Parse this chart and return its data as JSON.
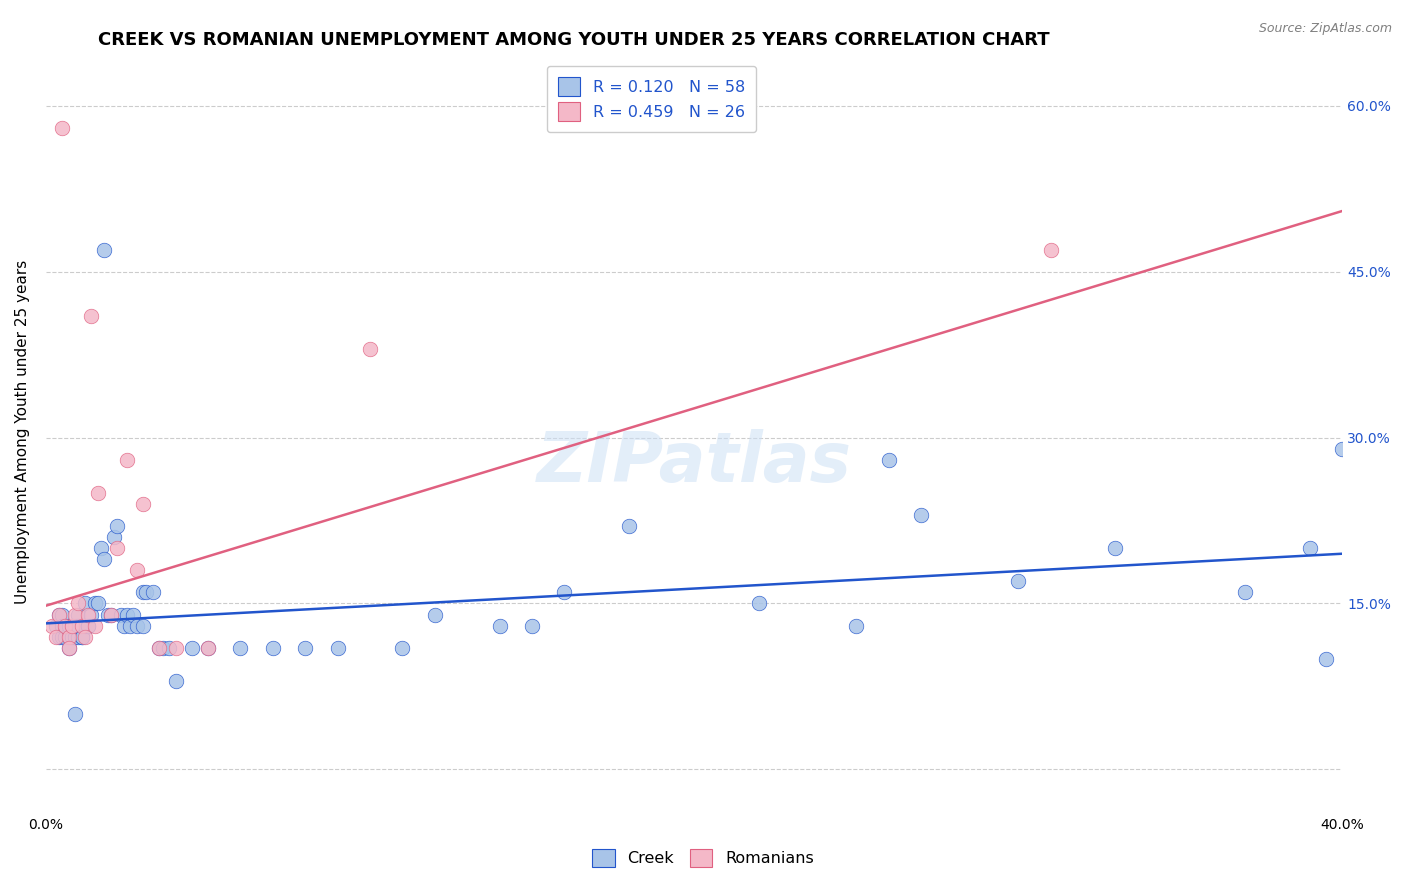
{
  "title": "CREEK VS ROMANIAN UNEMPLOYMENT AMONG YOUTH UNDER 25 YEARS CORRELATION CHART",
  "source": "Source: ZipAtlas.com",
  "ylabel": "Unemployment Among Youth under 25 years",
  "watermark": "ZIPatlas",
  "legend_label1": "R = 0.120   N = 58",
  "legend_label2": "R = 0.459   N = 26",
  "creek_color": "#a8c4e8",
  "romanian_color": "#f4b8c8",
  "creek_line_color": "#2255cc",
  "romanian_line_color": "#e06080",
  "xlim": [
    0.0,
    0.4
  ],
  "ylim": [
    -0.04,
    0.65
  ],
  "creek_line_x0": 0.0,
  "creek_line_y0": 0.132,
  "creek_line_x1": 0.4,
  "creek_line_y1": 0.195,
  "romanian_line_x0": 0.0,
  "romanian_line_y0": 0.148,
  "romanian_line_x1": 0.4,
  "romanian_line_y1": 0.505,
  "creek_x": [
    0.003,
    0.004,
    0.004,
    0.005,
    0.005,
    0.005,
    0.006,
    0.006,
    0.007,
    0.007,
    0.007,
    0.008,
    0.008,
    0.009,
    0.009,
    0.01,
    0.01,
    0.01,
    0.011,
    0.011,
    0.012,
    0.012,
    0.013,
    0.013,
    0.014,
    0.015,
    0.016,
    0.017,
    0.018,
    0.019,
    0.02,
    0.021,
    0.022,
    0.023,
    0.024,
    0.025,
    0.026,
    0.027,
    0.028,
    0.03,
    0.031,
    0.033,
    0.035,
    0.036,
    0.038,
    0.06,
    0.09,
    0.12,
    0.15,
    0.18,
    0.22,
    0.26,
    0.3,
    0.33,
    0.37,
    0.39,
    0.395,
    0.4
  ],
  "creek_y": [
    0.13,
    0.14,
    0.12,
    0.14,
    0.12,
    0.13,
    0.13,
    0.12,
    0.12,
    0.13,
    0.11,
    0.13,
    0.12,
    0.12,
    0.13,
    0.12,
    0.14,
    0.13,
    0.12,
    0.12,
    0.13,
    0.15,
    0.13,
    0.13,
    0.14,
    0.15,
    0.15,
    0.2,
    0.19,
    0.14,
    0.14,
    0.21,
    0.22,
    0.14,
    0.13,
    0.14,
    0.13,
    0.14,
    0.13,
    0.16,
    0.16,
    0.16,
    0.11,
    0.11,
    0.11,
    0.11,
    0.11,
    0.14,
    0.13,
    0.22,
    0.15,
    0.28,
    0.17,
    0.2,
    0.16,
    0.2,
    0.1,
    0.29
  ],
  "creek_x_extra": [
    0.009,
    0.018,
    0.03,
    0.04,
    0.045,
    0.05,
    0.07,
    0.08,
    0.11,
    0.14,
    0.16,
    0.25,
    0.27
  ],
  "creek_y_extra": [
    0.05,
    0.47,
    0.13,
    0.08,
    0.11,
    0.11,
    0.11,
    0.11,
    0.11,
    0.13,
    0.16,
    0.13,
    0.23
  ],
  "romanian_x": [
    0.002,
    0.003,
    0.004,
    0.005,
    0.006,
    0.007,
    0.007,
    0.008,
    0.009,
    0.01,
    0.011,
    0.012,
    0.013,
    0.014,
    0.015,
    0.016,
    0.02,
    0.022,
    0.025,
    0.028,
    0.03,
    0.035,
    0.04,
    0.05,
    0.1,
    0.31
  ],
  "romanian_y": [
    0.13,
    0.12,
    0.14,
    0.58,
    0.13,
    0.12,
    0.11,
    0.13,
    0.14,
    0.15,
    0.13,
    0.12,
    0.14,
    0.41,
    0.13,
    0.25,
    0.14,
    0.2,
    0.28,
    0.18,
    0.24,
    0.11,
    0.11,
    0.11,
    0.38,
    0.47
  ],
  "background_color": "#ffffff",
  "grid_color": "#cccccc",
  "title_fontsize": 13,
  "axis_fontsize": 11,
  "tick_fontsize": 10,
  "legend_fontsize": 11.5
}
